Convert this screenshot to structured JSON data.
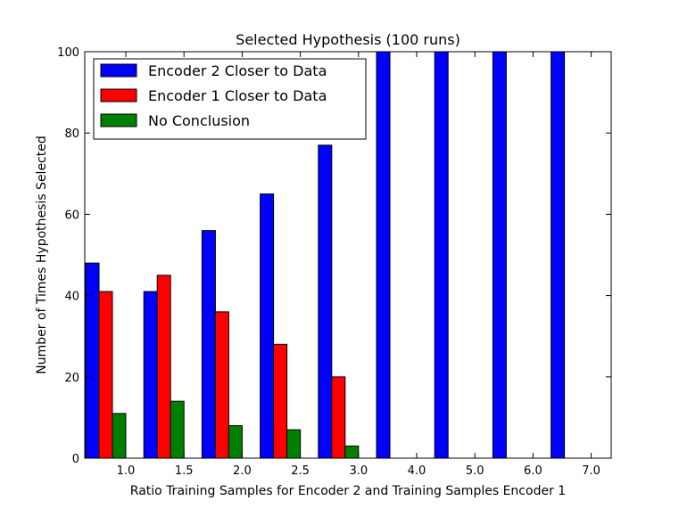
{
  "chart_data": {
    "type": "bar",
    "title": "Selected Hypothesis (100 runs)",
    "xlabel": "Ratio Training Samples for Encoder 2 and Training Samples Encoder 1",
    "ylabel": "Number of Times Hypothesis Selected",
    "categories": [
      "1.0",
      "1.5",
      "2.0",
      "2.5",
      "3.0",
      "4.0",
      "5.0",
      "6.0",
      "7.0"
    ],
    "yticks": [
      "0",
      "20",
      "40",
      "60",
      "80",
      "100"
    ],
    "ylim": [
      0,
      100
    ],
    "grid": false,
    "legend_position": "top-left",
    "series": [
      {
        "name": "Encoder 2 Closer to Data",
        "color": "#0000ff",
        "values": [
          48,
          41,
          56,
          65,
          77,
          100,
          100,
          100,
          100
        ]
      },
      {
        "name": "Encoder 1 Closer to Data",
        "color": "#ff0000",
        "values": [
          41,
          45,
          36,
          28,
          20,
          0,
          0,
          0,
          0
        ]
      },
      {
        "name": "No Conclusion",
        "color": "#008000",
        "values": [
          11,
          14,
          8,
          7,
          3,
          0,
          0,
          0,
          0
        ]
      }
    ]
  }
}
